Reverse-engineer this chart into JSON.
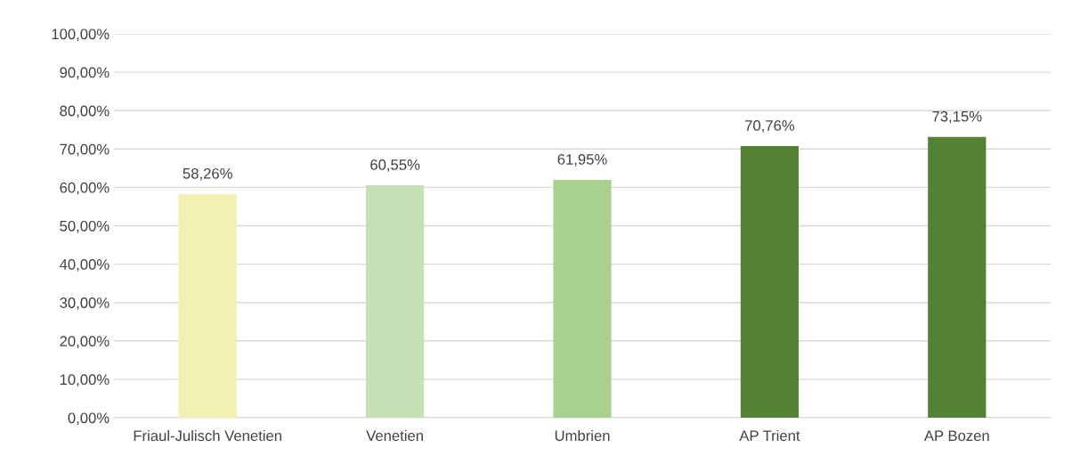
{
  "chart_data": {
    "type": "bar",
    "categories": [
      "Friaul-Julisch Venetien",
      "Venetien",
      "Umbrien",
      "AP Trient",
      "AP Bozen"
    ],
    "values": [
      58.26,
      60.55,
      61.95,
      70.76,
      73.15
    ],
    "colors": [
      "#f2f0b2",
      "#c5e0b4",
      "#a9d18e",
      "#548235",
      "#548235"
    ],
    "value_labels": [
      "58,26%",
      "60,55%",
      "61,95%",
      "70,76%",
      "73,15%"
    ],
    "ylim": [
      0,
      100
    ],
    "yticks": [
      {
        "value": 0,
        "label": "0,00%"
      },
      {
        "value": 10,
        "label": "10,00%"
      },
      {
        "value": 20,
        "label": "20,00%"
      },
      {
        "value": 30,
        "label": "30,00%"
      },
      {
        "value": 40,
        "label": "40,00%"
      },
      {
        "value": 50,
        "label": "50,00%"
      },
      {
        "value": 60,
        "label": "60,00%"
      },
      {
        "value": 70,
        "label": "70,00%"
      },
      {
        "value": 80,
        "label": "80,00%"
      },
      {
        "value": 90,
        "label": "90,00%"
      },
      {
        "value": 100,
        "label": "100,00%"
      }
    ],
    "grid": "y"
  }
}
